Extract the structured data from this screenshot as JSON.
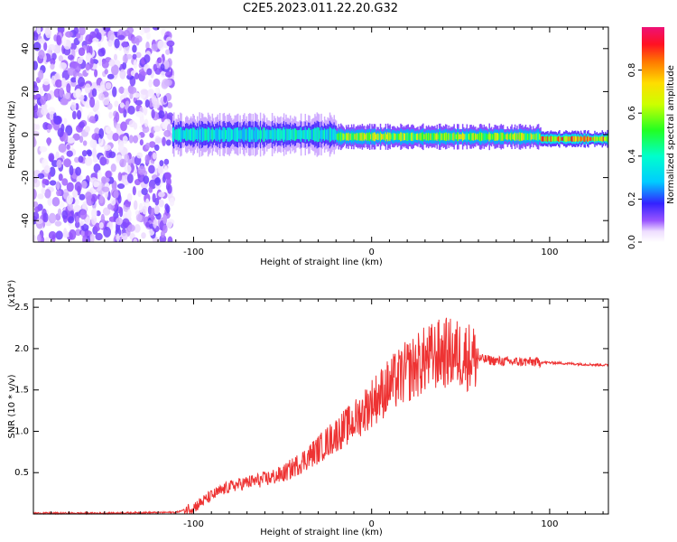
{
  "figure": {
    "title": "C2E5.2023.011.22.20.G32"
  },
  "chart_data": [
    {
      "type": "heatmap",
      "xlabel": "Height of straight line (km)",
      "ylabel": "Frequency (Hz)",
      "xlim": [
        -190,
        133
      ],
      "ylim": [
        -50,
        50
      ],
      "x_ticks": [
        -100,
        0,
        100
      ],
      "x_tick_labels": [
        "-100",
        "0",
        "100"
      ],
      "y_ticks": [
        -40,
        -20,
        0,
        20,
        40
      ],
      "y_tick_labels": [
        "-40",
        "-20",
        "0",
        "20",
        "40"
      ],
      "colorbar": {
        "label": "Normalized spectral amplitude",
        "range": [
          0,
          1
        ],
        "ticks": [
          0,
          0.2,
          0.4,
          0.6,
          0.8
        ],
        "tick_labels": [
          "0.0",
          "0.2",
          "0.4",
          "0.6",
          "0.8"
        ],
        "colormap": "rainbow"
      },
      "regions": [
        {
          "x_range": [
            -190,
            -112
          ],
          "freq_range": [
            -50,
            50
          ],
          "amplitude": 0.05
        },
        {
          "x_range": [
            -112,
            -20
          ],
          "freq_center": 0,
          "freq_halfwidth": 5,
          "amplitude_peak": 0.45
        },
        {
          "x_range": [
            -20,
            95
          ],
          "freq_center": -1,
          "freq_halfwidth": 3,
          "amplitude_peak": 0.75
        },
        {
          "x_range": [
            95,
            133
          ],
          "freq_center": -2,
          "freq_halfwidth": 2,
          "amplitude_peak": 0.95
        }
      ],
      "grid": false
    },
    {
      "type": "line",
      "xlabel": "Height of straight line (km)",
      "ylabel": "SNR (10 * v/v)",
      "y_multiplier": "(x10⁴)",
      "xlim": [
        -190,
        133
      ],
      "ylim": [
        0,
        2.6
      ],
      "x_ticks": [
        -100,
        0,
        100
      ],
      "x_tick_labels": [
        "-100",
        "0",
        "100"
      ],
      "y_ticks": [
        0.5,
        1.0,
        1.5,
        2.0,
        2.5
      ],
      "y_tick_labels": [
        "0.5",
        "1.0",
        "1.5",
        "2.0",
        "2.5"
      ],
      "color": "#ee3333",
      "series": [
        {
          "x": [
            -190,
            -150,
            -110,
            -100,
            -90,
            -80,
            -70,
            -60,
            -50,
            -40,
            -30,
            -20,
            -10,
            0,
            10,
            20,
            30,
            40,
            50,
            60,
            70,
            80,
            90,
            100,
            110,
            120,
            133
          ],
          "values": [
            0.01,
            0.01,
            0.02,
            0.08,
            0.22,
            0.33,
            0.38,
            0.42,
            0.48,
            0.62,
            0.78,
            0.96,
            1.12,
            1.35,
            1.55,
            1.72,
            1.86,
            1.95,
            1.93,
            1.88,
            1.85,
            1.84,
            1.84,
            1.83,
            1.82,
            1.81,
            1.8
          ]
        }
      ],
      "grid": false
    }
  ]
}
